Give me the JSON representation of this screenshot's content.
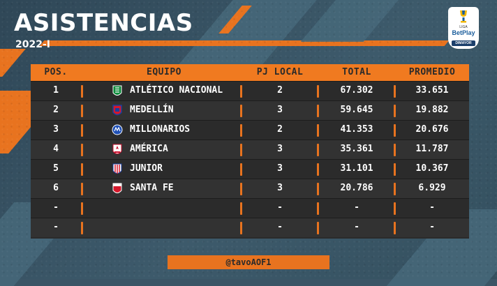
{
  "header": {
    "title": "ASISTENCIAS",
    "subtitle": "2022-I"
  },
  "logo": {
    "line1": "LIGA",
    "line2": "BetPlay",
    "line3": "DIMAYOR"
  },
  "table": {
    "columns": [
      "POS.",
      "EQUIPO",
      "PJ LOCAL",
      "TOTAL",
      "PROMEDIO"
    ],
    "rows": [
      {
        "pos": "1",
        "team": "ATLÉTICO NACIONAL",
        "pj": "2",
        "total": "67.302",
        "avg": "33.651",
        "crest": "atletico-nacional-crest"
      },
      {
        "pos": "2",
        "team": "MEDELLÍN",
        "pj": "3",
        "total": "59.645",
        "avg": "19.882",
        "crest": "medellin-crest"
      },
      {
        "pos": "3",
        "team": "MILLONARIOS",
        "pj": "2",
        "total": "41.353",
        "avg": "20.676",
        "crest": "millonarios-crest"
      },
      {
        "pos": "4",
        "team": "AMÉRICA",
        "pj": "3",
        "total": "35.361",
        "avg": "11.787",
        "crest": "america-crest"
      },
      {
        "pos": "5",
        "team": "JUNIOR",
        "pj": "3",
        "total": "31.101",
        "avg": "10.367",
        "crest": "junior-crest"
      },
      {
        "pos": "6",
        "team": "SANTA FE",
        "pj": "3",
        "total": "20.786",
        "avg": "6.929",
        "crest": "santa-fe-crest"
      },
      {
        "pos": "-",
        "team": "",
        "pj": "-",
        "total": "-",
        "avg": "-",
        "crest": ""
      },
      {
        "pos": "-",
        "team": "",
        "pj": "-",
        "total": "-",
        "avg": "-",
        "crest": ""
      }
    ]
  },
  "footer": {
    "handle": "@tavoAOF1"
  },
  "colors": {
    "accent": "#e8731f",
    "header_bg": "#f07a20",
    "row_bg": "#2b2b2b",
    "background": "#3b5566"
  }
}
